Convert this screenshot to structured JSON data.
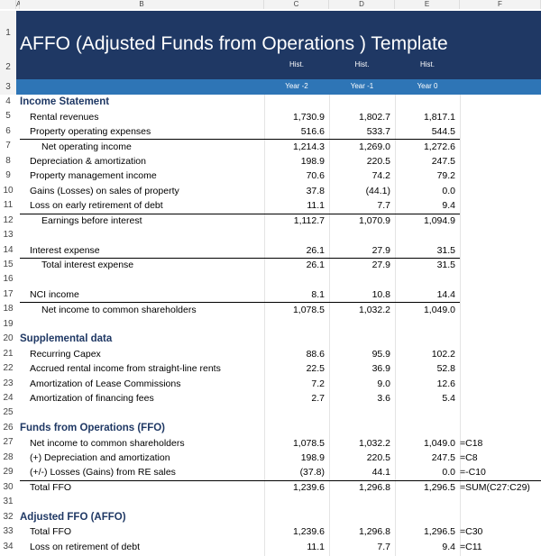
{
  "column_headers": [
    "A",
    "B",
    "C",
    "D",
    "E",
    "F"
  ],
  "rows": [
    {
      "row": "1",
      "b": "AFFO (Adjusted Funds from Operations ) Template"
    },
    {
      "row": "2",
      "c": "Hist.",
      "d": "Hist.",
      "e": "Hist."
    },
    {
      "row": "3",
      "c": "Year -2",
      "d": "Year -1",
      "e": "Year 0"
    },
    {
      "row": "4",
      "b": "Income Statement"
    },
    {
      "row": "5",
      "b": "Rental revenues",
      "c": "1,730.9",
      "d": "1,802.7",
      "e": "1,817.1"
    },
    {
      "row": "6",
      "b": "Property operating expenses",
      "c": "516.6",
      "d": "533.7",
      "e": "544.5"
    },
    {
      "row": "7",
      "b": "Net operating income",
      "c": "1,214.3",
      "d": "1,269.0",
      "e": "1,272.6"
    },
    {
      "row": "8",
      "b": "Depreciation & amortization",
      "c": "198.9",
      "d": "220.5",
      "e": "247.5"
    },
    {
      "row": "9",
      "b": "Property management income",
      "c": "70.6",
      "d": "74.2",
      "e": "79.2"
    },
    {
      "row": "10",
      "b": "Gains (Losses) on sales of property",
      "c": "37.8",
      "d": "(44.1)",
      "e": "0.0"
    },
    {
      "row": "11",
      "b": "Loss on early retirement of debt",
      "c": "11.1",
      "d": "7.7",
      "e": "9.4"
    },
    {
      "row": "12",
      "b": "Earnings before interest",
      "c": "1,112.7",
      "d": "1,070.9",
      "e": "1,094.9"
    },
    {
      "row": "13"
    },
    {
      "row": "14",
      "b": "Interest expense",
      "c": "26.1",
      "d": "27.9",
      "e": "31.5"
    },
    {
      "row": "15",
      "b": "Total interest expense",
      "c": "26.1",
      "d": "27.9",
      "e": "31.5"
    },
    {
      "row": "16"
    },
    {
      "row": "17",
      "b": "NCI income",
      "c": "8.1",
      "d": "10.8",
      "e": "14.4"
    },
    {
      "row": "18",
      "b": "Net income to common shareholders",
      "c": "1,078.5",
      "d": "1,032.2",
      "e": "1,049.0"
    },
    {
      "row": "19"
    },
    {
      "row": "20",
      "b": "Supplemental data"
    },
    {
      "row": "21",
      "b": "Recurring Capex",
      "c": "88.6",
      "d": "95.9",
      "e": "102.2"
    },
    {
      "row": "22",
      "b": "Accrued rental income from straight-line rents",
      "c": "22.5",
      "d": "36.9",
      "e": "52.8"
    },
    {
      "row": "23",
      "b": "Amortization of Lease Commissions",
      "c": "7.2",
      "d": "9.0",
      "e": "12.6"
    },
    {
      "row": "24",
      "b": "Amortization of financing fees",
      "c": "2.7",
      "d": "3.6",
      "e": "5.4"
    },
    {
      "row": "25"
    },
    {
      "row": "26",
      "b": "Funds from Operations (FFO)"
    },
    {
      "row": "27",
      "b": "Net income to common shareholders",
      "c": "1,078.5",
      "d": "1,032.2",
      "e": "1,049.0",
      "f": "=C18"
    },
    {
      "row": "28",
      "b": "(+) Depreciation and amortization",
      "c": "198.9",
      "d": "220.5",
      "e": "247.5",
      "f": "=C8"
    },
    {
      "row": "29",
      "b": "(+/-) Losses (Gains) from RE sales",
      "c": "(37.8)",
      "d": "44.1",
      "e": "0.0",
      "f": "=-C10"
    },
    {
      "row": "30",
      "b": "Total FFO",
      "c": "1,239.6",
      "d": "1,296.8",
      "e": "1,296.5",
      "f": "=SUM(C27:C29)"
    },
    {
      "row": "31"
    },
    {
      "row": "32",
      "b": "Adjusted FFO (AFFO)"
    },
    {
      "row": "33",
      "b": "Total FFO",
      "c": "1,239.6",
      "d": "1,296.8",
      "e": "1,296.5",
      "f": "=C30"
    },
    {
      "row": "34",
      "b": "Loss on retirement of debt",
      "c": "11.1",
      "d": "7.7",
      "e": "9.4",
      "f": "=C11"
    }
  ]
}
